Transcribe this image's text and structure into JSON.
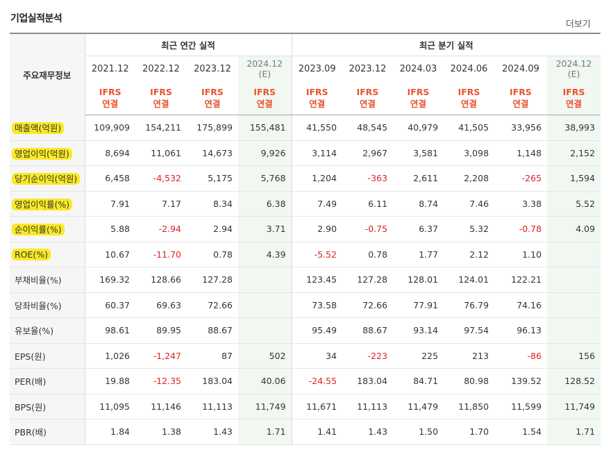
{
  "title": "기업실적분석",
  "more": "더보기",
  "header": {
    "label": "주요재무정보",
    "annual": "최근 연간 실적",
    "quarterly": "최근 분기 실적",
    "periods": [
      {
        "y": "2021.12",
        "est": "",
        "ifrs": "IFRS",
        "sub": "연결"
      },
      {
        "y": "2022.12",
        "est": "",
        "ifrs": "IFRS",
        "sub": "연결"
      },
      {
        "y": "2023.12",
        "est": "",
        "ifrs": "IFRS",
        "sub": "연결"
      },
      {
        "y": "2024.12",
        "est": "(E)",
        "ifrs": "IFRS",
        "sub": "연결"
      },
      {
        "y": "2023.09",
        "est": "",
        "ifrs": "IFRS",
        "sub": "연결"
      },
      {
        "y": "2023.12",
        "est": "",
        "ifrs": "IFRS",
        "sub": "연결"
      },
      {
        "y": "2024.03",
        "est": "",
        "ifrs": "IFRS",
        "sub": "연결"
      },
      {
        "y": "2024.06",
        "est": "",
        "ifrs": "IFRS",
        "sub": "연결"
      },
      {
        "y": "2024.09",
        "est": "",
        "ifrs": "IFRS",
        "sub": "연결"
      },
      {
        "y": "2024.12",
        "est": "(E)",
        "ifrs": "IFRS",
        "sub": "연결"
      }
    ]
  },
  "rows": [
    {
      "label": "매출액(억원)",
      "v": [
        "109,909",
        "154,211",
        "175,899",
        "155,481",
        "41,550",
        "48,545",
        "40,979",
        "41,505",
        "33,956",
        "38,993"
      ]
    },
    {
      "label": "영업이익(억원)",
      "v": [
        "8,694",
        "11,061",
        "14,673",
        "9,926",
        "3,114",
        "2,967",
        "3,581",
        "3,098",
        "1,148",
        "2,152"
      ]
    },
    {
      "label": "당기순이익(억원)",
      "v": [
        "6,458",
        "-4,532",
        "5,175",
        "5,768",
        "1,204",
        "-363",
        "2,611",
        "2,208",
        "-265",
        "1,594"
      ]
    },
    {
      "label": "영업이익률(%)",
      "v": [
        "7.91",
        "7.17",
        "8.34",
        "6.38",
        "7.49",
        "6.11",
        "8.74",
        "7.46",
        "3.38",
        "5.52"
      ]
    },
    {
      "label": "순이익률(%)",
      "v": [
        "5.88",
        "-2.94",
        "2.94",
        "3.71",
        "2.90",
        "-0.75",
        "6.37",
        "5.32",
        "-0.78",
        "4.09"
      ]
    },
    {
      "label": "ROE(%)",
      "v": [
        "10.67",
        "-11.70",
        "0.78",
        "4.39",
        "-5.52",
        "0.78",
        "1.77",
        "2.12",
        "1.10",
        ""
      ]
    },
    {
      "label": "부채비율(%)",
      "v": [
        "169.32",
        "128.66",
        "127.28",
        "",
        "123.45",
        "127.28",
        "128.01",
        "124.01",
        "122.21",
        ""
      ]
    },
    {
      "label": "당좌비율(%)",
      "v": [
        "60.37",
        "69.63",
        "72.66",
        "",
        "73.58",
        "72.66",
        "77.91",
        "76.79",
        "74.16",
        ""
      ]
    },
    {
      "label": "유보율(%)",
      "v": [
        "98.61",
        "89.95",
        "88.67",
        "",
        "95.49",
        "88.67",
        "93.14",
        "97.54",
        "96.13",
        ""
      ]
    },
    {
      "label": "EPS(원)",
      "v": [
        "1,026",
        "-1,247",
        "87",
        "502",
        "34",
        "-223",
        "225",
        "213",
        "-86",
        "156"
      ]
    },
    {
      "label": "PER(배)",
      "v": [
        "19.88",
        "-12.35",
        "183.04",
        "40.06",
        "-24.55",
        "183.04",
        "84.71",
        "80.98",
        "139.52",
        "128.52"
      ]
    },
    {
      "label": "BPS(원)",
      "v": [
        "11,095",
        "11,146",
        "11,113",
        "11,749",
        "11,671",
        "11,113",
        "11,479",
        "11,850",
        "11,599",
        "11,749"
      ]
    },
    {
      "label": "PBR(배)",
      "v": [
        "1.84",
        "1.38",
        "1.43",
        "1.71",
        "1.41",
        "1.43",
        "1.50",
        "1.70",
        "1.54",
        "1.71"
      ]
    }
  ],
  "highlighted_rows": [
    0,
    1,
    2,
    3,
    4,
    5
  ],
  "section_breaks": [
    3,
    9
  ]
}
